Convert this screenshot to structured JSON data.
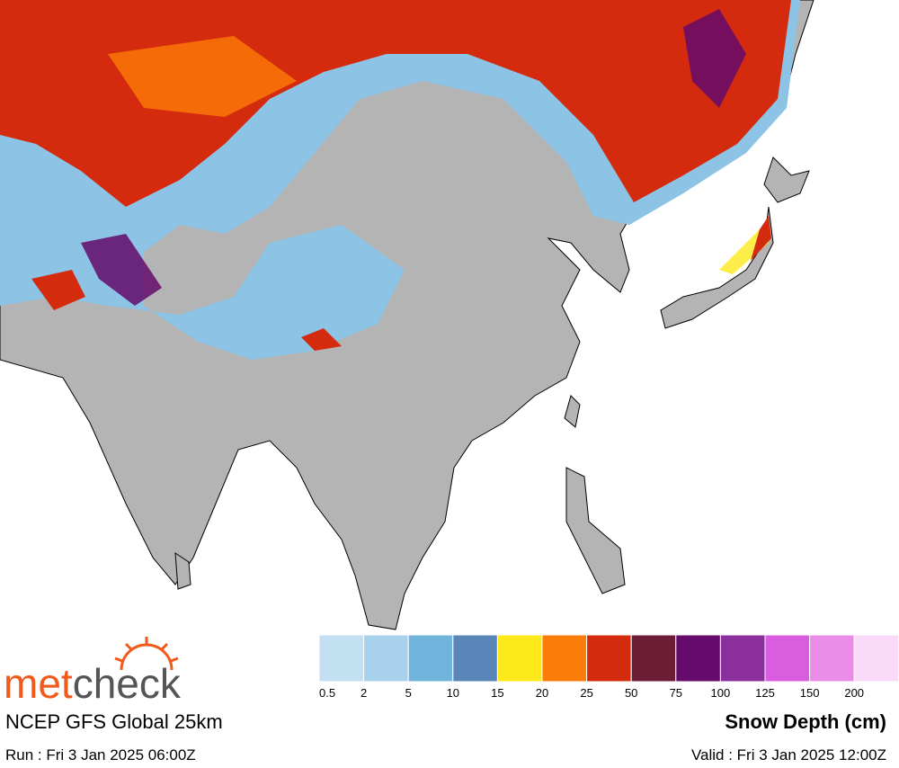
{
  "logo": {
    "first": "met",
    "second": "check"
  },
  "model": "NCEP GFS Global 25km",
  "run": "Run : Fri 3 Jan 2025 06:00Z",
  "valid": "Valid : Fri 3 Jan 2025 12:00Z",
  "legend": {
    "title": "Snow Depth (cm)",
    "bins": [
      {
        "label": "0.5",
        "color": "#c2e0f1"
      },
      {
        "label": "2",
        "color": "#a8d1ec"
      },
      {
        "label": "5",
        "color": "#70b4dc"
      },
      {
        "label": "10",
        "color": "#5b86b9"
      },
      {
        "label": "15",
        "color": "#fde91a"
      },
      {
        "label": "20",
        "color": "#fb7c08"
      },
      {
        "label": "25",
        "color": "#d42a0e"
      },
      {
        "label": "50",
        "color": "#6b1d36"
      },
      {
        "label": "75",
        "color": "#640b6b"
      },
      {
        "label": "100",
        "color": "#8b2f9d"
      },
      {
        "label": "125",
        "color": "#d85ddf"
      },
      {
        "label": "150",
        "color": "#e98de8"
      },
      {
        "label": "200",
        "color": "#f9dbf9"
      }
    ]
  }
}
